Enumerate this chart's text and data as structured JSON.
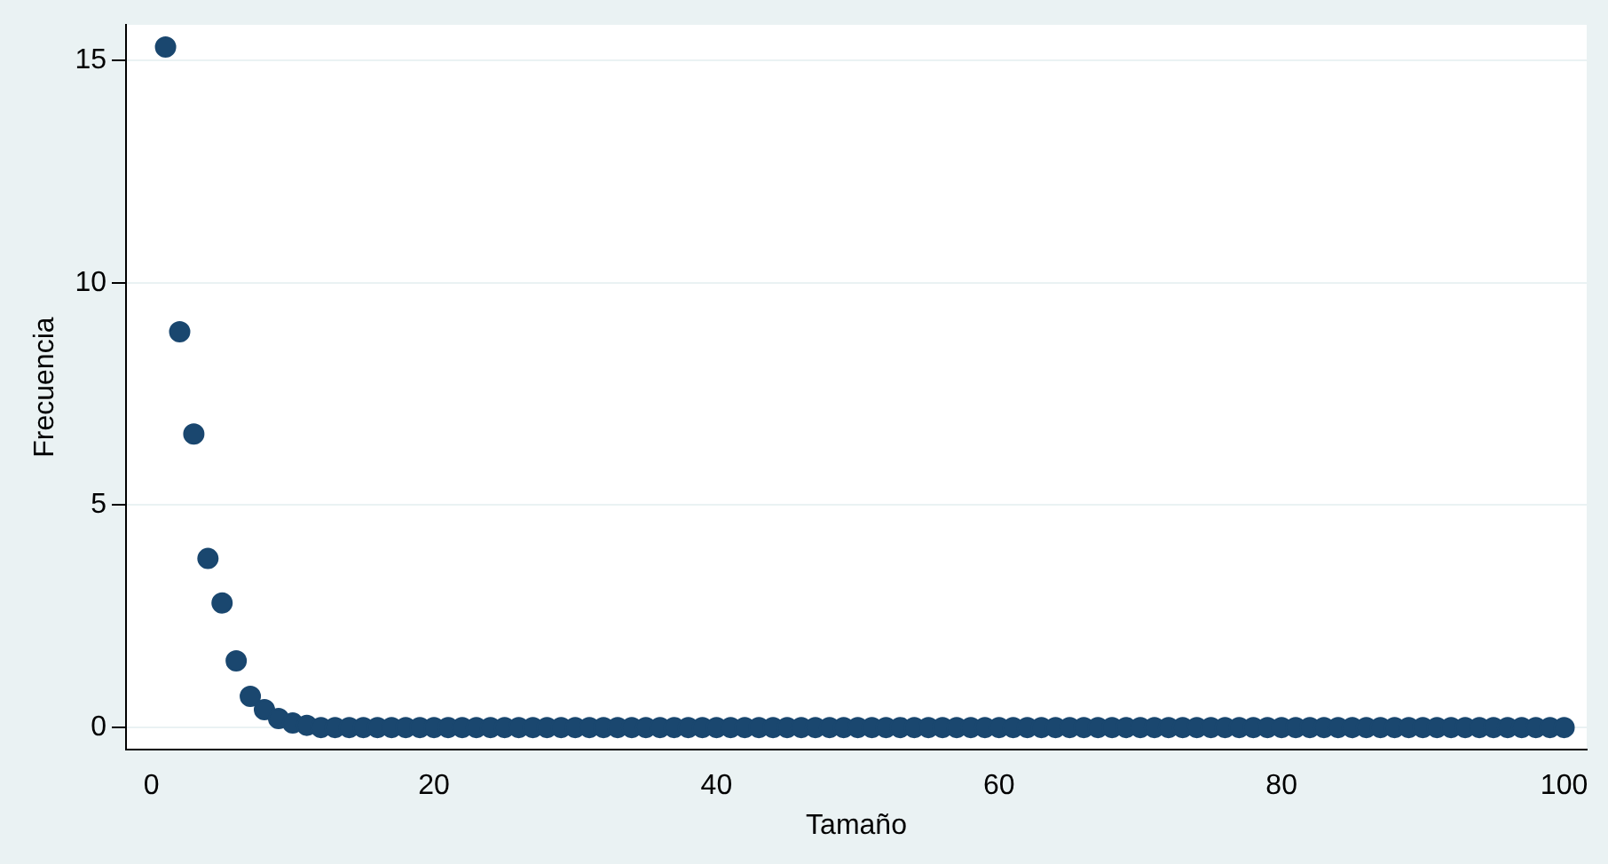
{
  "chart_data": {
    "type": "scatter",
    "xlabel": "Tamaño",
    "ylabel": "Frecuencia",
    "x": [
      1,
      2,
      3,
      4,
      5,
      6,
      7,
      8,
      9,
      10,
      11,
      12,
      13,
      14,
      15,
      16,
      17,
      18,
      19,
      20,
      21,
      22,
      23,
      24,
      25,
      26,
      27,
      28,
      29,
      30,
      31,
      32,
      33,
      34,
      35,
      36,
      37,
      38,
      39,
      40,
      41,
      42,
      43,
      44,
      45,
      46,
      47,
      48,
      49,
      50,
      51,
      52,
      53,
      54,
      55,
      56,
      57,
      58,
      59,
      60,
      61,
      62,
      63,
      64,
      65,
      66,
      67,
      68,
      69,
      70,
      71,
      72,
      73,
      74,
      75,
      76,
      77,
      78,
      79,
      80,
      81,
      82,
      83,
      84,
      85,
      86,
      87,
      88,
      89,
      90,
      91,
      92,
      93,
      94,
      95,
      96,
      97,
      98,
      99,
      100
    ],
    "values": [
      15.3,
      8.9,
      6.6,
      3.8,
      2.8,
      1.5,
      0.7,
      0.4,
      0.2,
      0.1,
      0.05,
      0,
      0,
      0,
      0,
      0,
      0,
      0,
      0,
      0,
      0,
      0,
      0,
      0,
      0,
      0,
      0,
      0,
      0,
      0,
      0,
      0,
      0,
      0,
      0,
      0,
      0,
      0,
      0,
      0,
      0,
      0,
      0,
      0,
      0,
      0,
      0,
      0,
      0,
      0,
      0,
      0,
      0,
      0,
      0,
      0,
      0,
      0,
      0,
      0,
      0,
      0,
      0,
      0,
      0,
      0,
      0,
      0,
      0,
      0,
      0,
      0,
      0,
      0,
      0,
      0,
      0,
      0,
      0,
      0,
      0,
      0,
      0,
      0,
      0,
      0,
      0,
      0,
      0,
      0,
      0,
      0,
      0,
      0,
      0,
      0,
      0,
      0,
      0,
      0
    ],
    "color": "#1a476f",
    "marker": "circle",
    "grid": "y",
    "legend": false,
    "xlim": [
      -1.8,
      101.6
    ],
    "xticks": [
      0,
      20,
      40,
      60,
      80,
      100
    ],
    "ylim": [
      -0.5,
      15.8
    ],
    "yticks": [
      0,
      5,
      10,
      15
    ]
  }
}
